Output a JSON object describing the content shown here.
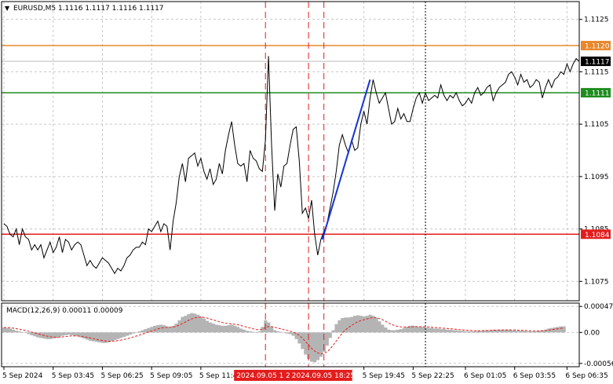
{
  "header": {
    "arrow": "▼",
    "symbol_line": "EURUSD,M5  1.1116 1.1117 1.1116 1.1117"
  },
  "indicator": {
    "label": "MACD(12,26,9) 0.00011 0.00009"
  },
  "price_axis": {
    "ticks": [
      "1.1125",
      "1.1115",
      "1.1105",
      "1.1095",
      "1.1085",
      "1.1075"
    ],
    "tick_values": [
      1.1125,
      1.1115,
      1.1105,
      1.1095,
      1.1085,
      1.1075
    ],
    "range": [
      1.10713,
      1.11284
    ]
  },
  "macd_axis": {
    "ticks": [
      "0.00047",
      "0.00",
      "-0.00056"
    ],
    "tick_values": [
      0.00047,
      0.0,
      -0.00056
    ],
    "range": [
      -0.00062,
      0.00053
    ]
  },
  "time_axis": {
    "labels": [
      "5 Sep 2024",
      "5 Sep 03:45",
      "5 Sep 06:25",
      "5 Sep 09:05",
      "5 Sep 11:4",
      "5 Sep 19:45",
      "5 Sep 22:25",
      "6 Sep 01:05",
      "6 Sep 03:55",
      "6 Sep 06:35"
    ],
    "label_index": [
      0,
      16,
      32,
      48,
      64,
      117,
      133,
      150,
      166,
      183
    ],
    "markers": [
      {
        "text": "2024.09.05 1 202",
        "index": 85
      },
      {
        "text": "2024.09.05 18:25",
        "index": 103
      }
    ]
  },
  "levels": [
    {
      "price": 1.112,
      "label": "1.1120",
      "color": "#e8872c",
      "style": "line"
    },
    {
      "price": 1.1117,
      "label": "1.1117",
      "color": "#000000",
      "style": "current"
    },
    {
      "price": 1.1111,
      "label": "1.1111",
      "color": "#1e8c1e",
      "style": "line"
    },
    {
      "price": 1.1084,
      "label": "1.1084",
      "color": "#e31d1d",
      "style": "line"
    }
  ],
  "vertical_markers": {
    "red_dashed_index": [
      85,
      99,
      104
    ],
    "black_dotted_index": [
      137
    ]
  },
  "colors": {
    "price_line": "#000000",
    "trend_line": "#1433d6",
    "macd_hist": "#b4b4b4",
    "macd_signal": "#e31d1d",
    "grid": "#c8c8c8"
  },
  "chart_data": {
    "type": "line",
    "title": "EURUSD,M5",
    "series": [
      {
        "name": "EURUSD,M5",
        "values": [
          1.1086,
          1.10855,
          1.1084,
          1.10835,
          1.1085,
          1.1082,
          1.1085,
          1.10835,
          1.1083,
          1.1081,
          1.1082,
          1.1081,
          1.1082,
          1.10795,
          1.1081,
          1.10825,
          1.10805,
          1.10815,
          1.10835,
          1.10805,
          1.1083,
          1.10825,
          1.1081,
          1.1082,
          1.10825,
          1.1082,
          1.108,
          1.1078,
          1.1079,
          1.1078,
          1.10775,
          1.10785,
          1.10795,
          1.1079,
          1.10785,
          1.10775,
          1.10765,
          1.10775,
          1.1077,
          1.1078,
          1.10795,
          1.108,
          1.1081,
          1.10815,
          1.10815,
          1.10825,
          1.1082,
          1.1085,
          1.10845,
          1.10855,
          1.10865,
          1.10845,
          1.1086,
          1.10855,
          1.1081,
          1.10865,
          1.109,
          1.1095,
          1.10975,
          1.1094,
          1.10985,
          1.1099,
          1.10995,
          1.1097,
          1.10985,
          1.1096,
          1.10945,
          1.10965,
          1.10935,
          1.10945,
          1.10975,
          1.10955,
          1.11,
          1.1103,
          1.11055,
          1.1101,
          1.10975,
          1.1097,
          1.10975,
          1.1094,
          1.11,
          1.10985,
          1.1098,
          1.10965,
          1.1096,
          1.1102,
          1.1118,
          1.1101,
          1.10885,
          1.10955,
          1.1093,
          1.1097,
          1.10975,
          1.1101,
          1.1104,
          1.11045,
          1.1098,
          1.1088,
          1.1089,
          1.1087,
          1.10905,
          1.1084,
          1.108,
          1.1083,
          1.10845,
          1.1086,
          1.1089,
          1.1092,
          1.1096,
          1.1101,
          1.1103,
          1.1101,
          1.10995,
          1.1102,
          1.11,
          1.11005,
          1.1105,
          1.11075,
          1.1105,
          1.111,
          1.11135,
          1.1111,
          1.1109,
          1.111,
          1.1111,
          1.1108,
          1.1105,
          1.11055,
          1.1108,
          1.1106,
          1.1107,
          1.11055,
          1.11055,
          1.1108,
          1.111,
          1.1111,
          1.1109,
          1.1111,
          1.11095,
          1.111,
          1.11105,
          1.111,
          1.11125,
          1.11105,
          1.11095,
          1.11105,
          1.111,
          1.1111,
          1.11095,
          1.11085,
          1.1109,
          1.111,
          1.1109,
          1.1111,
          1.1112,
          1.11105,
          1.1111,
          1.1112,
          1.11125,
          1.11095,
          1.1111,
          1.1112,
          1.11125,
          1.1113,
          1.11145,
          1.1115,
          1.1114,
          1.11125,
          1.11145,
          1.1113,
          1.11135,
          1.1112,
          1.11125,
          1.11135,
          1.1113,
          1.111,
          1.1112,
          1.11135,
          1.1112,
          1.11135,
          1.1114,
          1.1115,
          1.11145,
          1.11165,
          1.1115,
          1.11165,
          1.11175,
          1.1117
        ]
      },
      {
        "name": "MACD(12,26,9) histogram",
        "values": [
          9e-05,
          8e-05,
          7e-05,
          5e-05,
          3e-05,
          2e-05,
          0.0,
          -1e-05,
          -3e-05,
          -5e-05,
          -7e-05,
          -9e-05,
          -0.0001,
          -0.00011,
          -0.00012,
          -0.00012,
          -0.00011,
          -0.0001,
          -8e-05,
          -6e-05,
          -5e-05,
          -4e-05,
          -5e-05,
          -6e-05,
          -7e-05,
          -9e-05,
          -0.00011,
          -0.00013,
          -0.00015,
          -0.00016,
          -0.00017,
          -0.00018,
          -0.00019,
          -0.00019,
          -0.00018,
          -0.00016,
          -0.00014,
          -0.00012,
          -0.0001,
          -8e-05,
          -6e-05,
          -4e-05,
          -2e-05,
          0.0,
          2e-05,
          4e-05,
          6e-05,
          8e-05,
          0.0001,
          0.00012,
          0.00013,
          0.00014,
          0.00013,
          0.00011,
          0.0001,
          0.00012,
          0.00016,
          0.00022,
          0.00028,
          0.0003,
          0.00033,
          0.00035,
          0.00034,
          0.00032,
          0.00029,
          0.00025,
          0.00021,
          0.00018,
          0.00016,
          0.00014,
          0.00013,
          0.00012,
          0.00012,
          0.00013,
          0.00014,
          0.00012,
          0.0001,
          7e-05,
          5e-05,
          3e-05,
          2e-05,
          1e-05,
          0.0,
          2e-05,
          0.0001,
          0.00022,
          0.00018,
          0.0001,
          4e-05,
          2e-05,
          1e-05,
          0.0,
          -2e-05,
          -3e-05,
          -6e-05,
          -0.00012,
          -0.0002,
          -0.0003,
          -0.0004,
          -0.00048,
          -0.00053,
          -0.00054,
          -0.0005,
          -0.00044,
          -0.00035,
          -0.00024,
          -0.0001,
          4e-05,
          0.00015,
          0.00022,
          0.00026,
          0.00027,
          0.00027,
          0.00028,
          0.0003,
          0.00031,
          0.0003,
          0.00029,
          0.0003,
          0.00032,
          0.0003,
          0.00026,
          0.0002,
          0.00014,
          9e-05,
          5e-05,
          4e-05,
          4e-05,
          5e-05,
          6e-05,
          8e-05,
          0.0001,
          0.00012,
          0.00012,
          0.00011,
          0.0001,
          0.0001,
          9e-05,
          8e-05,
          8e-05,
          7e-05,
          7e-05,
          6e-05,
          6e-05,
          5e-05,
          5e-05,
          4e-05,
          4e-05,
          3e-05,
          3e-05,
          2e-05,
          2e-05,
          2e-05,
          2e-05,
          3e-05,
          3e-05,
          4e-05,
          4e-05,
          4e-05,
          5e-05,
          5e-05,
          5e-05,
          5e-05,
          5e-05,
          5e-05,
          4e-05,
          4e-05,
          3e-05,
          3e-05,
          3e-05,
          2e-05,
          2e-05,
          2e-05,
          2e-05,
          3e-05,
          4e-05,
          5e-05,
          7e-05,
          8e-05,
          9e-05,
          0.0001,
          0.00011,
          0.00011
        ]
      }
    ],
    "trend_line": {
      "from_index": 103.5,
      "from_price": 1.1083,
      "to_index": 119,
      "to_price": 1.11135
    },
    "xlabel": "",
    "ylabel": ""
  }
}
